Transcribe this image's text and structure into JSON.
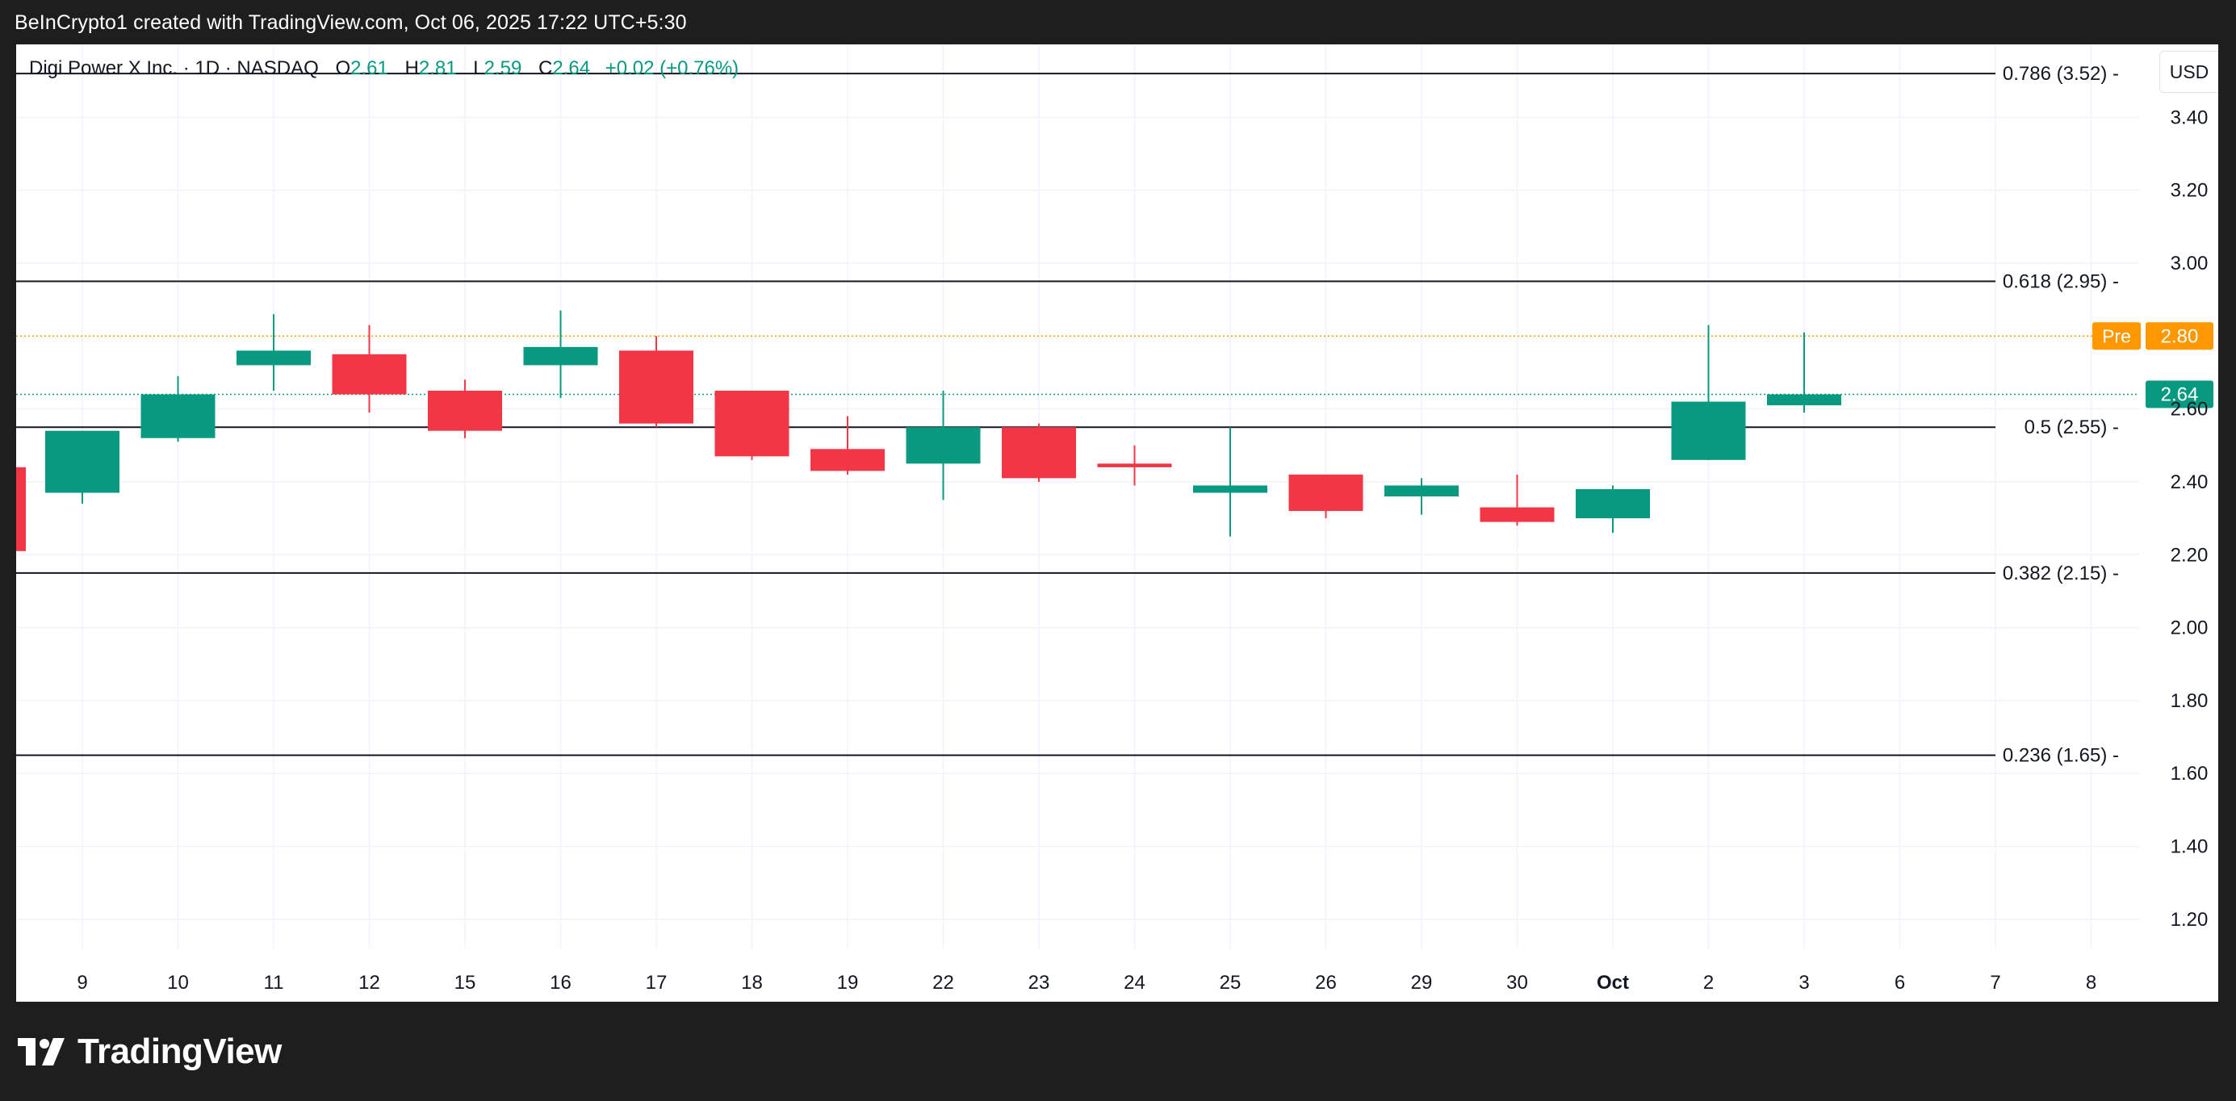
{
  "caption": "BeInCrypto1 created with TradingView.com, Oct 06, 2025 17:22 UTC+5:30",
  "header": {
    "symbol": "Digi Power X Inc. · 1D · NASDAQ",
    "o_key": "O",
    "o_val": "2.61",
    "h_key": "H",
    "h_val": "2.81",
    "l_key": "L",
    "l_val": "2.59",
    "c_key": "C",
    "c_val": "2.64",
    "change": "+0.02 (+0.76%)"
  },
  "currency": "USD",
  "footer": {
    "logo_icon": "tradingview-logo-icon",
    "brand": "TradingView"
  },
  "colors": {
    "up": "#089981",
    "down": "#f23645",
    "grid": "#f0f3fa",
    "fib": "#131722",
    "pre": "#ff9800",
    "text": "#131722"
  },
  "chart_data": {
    "type": "candlestick",
    "ylim": [
      1.12,
      3.6
    ],
    "yticks": [
      1.2,
      1.4,
      1.6,
      1.8,
      2.0,
      2.2,
      2.4,
      2.6,
      3.0,
      3.2,
      3.4
    ],
    "ytick_labels": [
      "1.20",
      "1.40",
      "1.60",
      "1.80",
      "2.00",
      "2.20",
      "2.40",
      "2.60",
      "3.00",
      "3.20",
      "3.40"
    ],
    "xticks": [
      "9",
      "10",
      "11",
      "12",
      "15",
      "16",
      "17",
      "18",
      "19",
      "22",
      "23",
      "24",
      "25",
      "26",
      "29",
      "30",
      "Oct",
      "2",
      "3",
      "6",
      "7",
      "8"
    ],
    "bold_xticks": [
      "Oct"
    ],
    "partial_candle": {
      "open": 2.44,
      "close": 2.21,
      "high": 2.44,
      "low": 2.21
    },
    "candles": [
      {
        "x": "9",
        "open": 2.37,
        "high": 2.54,
        "low": 2.34,
        "close": 2.54
      },
      {
        "x": "10",
        "open": 2.52,
        "high": 2.69,
        "low": 2.51,
        "close": 2.64
      },
      {
        "x": "11",
        "open": 2.72,
        "high": 2.86,
        "low": 2.65,
        "close": 2.76
      },
      {
        "x": "12",
        "open": 2.75,
        "high": 2.83,
        "low": 2.59,
        "close": 2.64
      },
      {
        "x": "15",
        "open": 2.65,
        "high": 2.68,
        "low": 2.52,
        "close": 2.54
      },
      {
        "x": "16",
        "open": 2.72,
        "high": 2.87,
        "low": 2.63,
        "close": 2.77
      },
      {
        "x": "17",
        "open": 2.76,
        "high": 2.8,
        "low": 2.55,
        "close": 2.56
      },
      {
        "x": "18",
        "open": 2.65,
        "high": 2.65,
        "low": 2.46,
        "close": 2.47
      },
      {
        "x": "19",
        "open": 2.49,
        "high": 2.58,
        "low": 2.42,
        "close": 2.43
      },
      {
        "x": "22",
        "open": 2.45,
        "high": 2.65,
        "low": 2.35,
        "close": 2.55
      },
      {
        "x": "23",
        "open": 2.55,
        "high": 2.56,
        "low": 2.4,
        "close": 2.41
      },
      {
        "x": "24",
        "open": 2.45,
        "high": 2.5,
        "low": 2.39,
        "close": 2.44
      },
      {
        "x": "25",
        "open": 2.37,
        "high": 2.55,
        "low": 2.25,
        "close": 2.39
      },
      {
        "x": "26",
        "open": 2.42,
        "high": 2.42,
        "low": 2.3,
        "close": 2.32
      },
      {
        "x": "29",
        "open": 2.36,
        "high": 2.41,
        "low": 2.31,
        "close": 2.39
      },
      {
        "x": "30",
        "open": 2.33,
        "high": 2.42,
        "low": 2.28,
        "close": 2.29
      },
      {
        "x": "Oct",
        "open": 2.3,
        "high": 2.39,
        "low": 2.26,
        "close": 2.38
      },
      {
        "x": "2",
        "open": 2.46,
        "high": 2.83,
        "low": 2.46,
        "close": 2.62
      },
      {
        "x": "3",
        "open": 2.61,
        "high": 2.81,
        "low": 2.59,
        "close": 2.64
      }
    ],
    "fib_levels": [
      {
        "label": "0.786 (3.52)",
        "value": 3.52
      },
      {
        "label": "0.618 (2.95)",
        "value": 2.95
      },
      {
        "label": "0.5 (2.55)",
        "value": 2.55
      },
      {
        "label": "0.382 (2.15)",
        "value": 2.15
      },
      {
        "label": "0.236 (1.65)",
        "value": 1.65
      }
    ],
    "price_lines": [
      {
        "tag": "Pre",
        "label": "2.80",
        "value": 2.8,
        "style": "dotted",
        "color": "#ff9800"
      },
      {
        "tag": "",
        "label": "2.64",
        "value": 2.64,
        "style": "dotted",
        "color": "#089981"
      }
    ]
  }
}
